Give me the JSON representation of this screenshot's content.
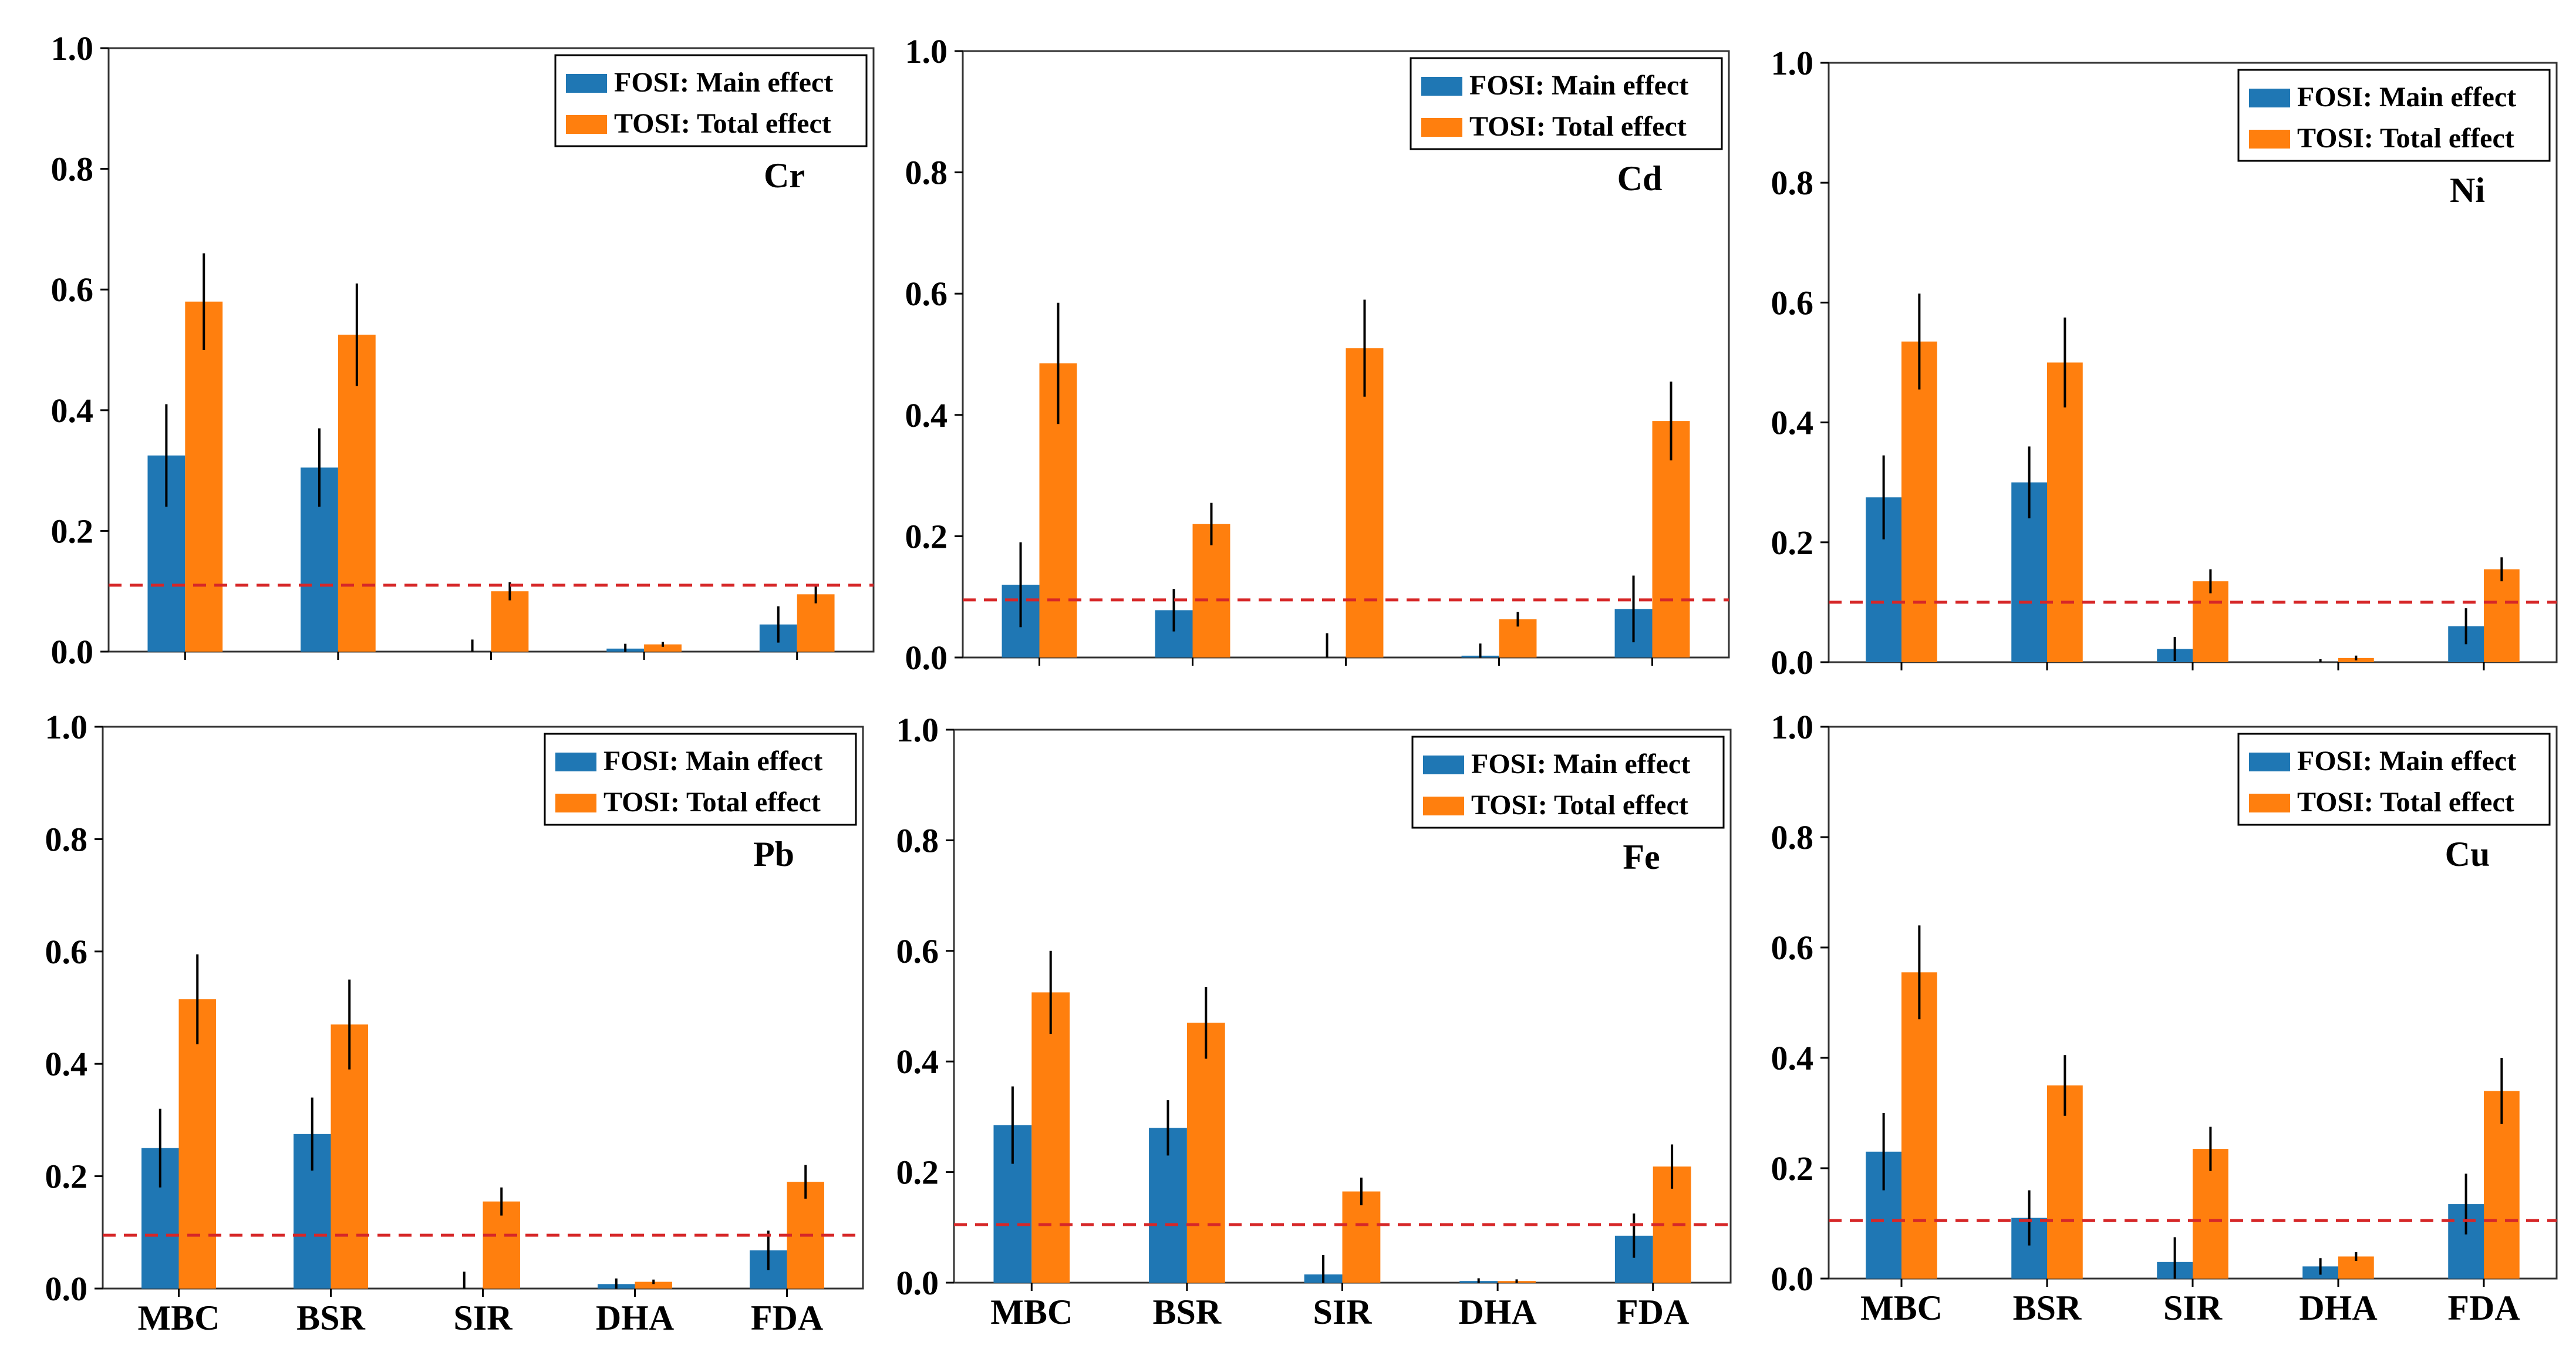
{
  "figure": {
    "colors": {
      "fosi": "#1f77b4",
      "tosi": "#ff7f0e",
      "threshold": "#d62728",
      "errorbar": "#000000"
    }
  },
  "chart_data": [
    {
      "type": "bar",
      "title": "Cr",
      "categories": [
        "MBC",
        "BSR",
        "SIR",
        "DHA",
        "FDA"
      ],
      "show_categories": false,
      "yticks": [
        "0.0",
        "0.2",
        "0.4",
        "0.6",
        "0.8",
        "1.0"
      ],
      "ylim": [
        0,
        1
      ],
      "threshold": 0.11,
      "legend": [
        "FOSI: Main effect",
        "TOSI: Total effect"
      ],
      "series": [
        {
          "name": "FOSI: Main effect",
          "values": [
            0.325,
            0.305,
            0.0,
            0.005,
            0.045
          ],
          "errors": [
            0.085,
            0.065,
            0.02,
            0.008,
            0.03
          ]
        },
        {
          "name": "TOSI: Total effect",
          "values": [
            0.58,
            0.525,
            0.1,
            0.012,
            0.095
          ],
          "errors": [
            0.08,
            0.085,
            0.015,
            0.004,
            0.015
          ]
        }
      ]
    },
    {
      "type": "bar",
      "title": "Cd",
      "categories": [
        "MBC",
        "BSR",
        "SIR",
        "DHA",
        "FDA"
      ],
      "show_categories": false,
      "yticks": [
        "0.0",
        "0.2",
        "0.4",
        "0.6",
        "0.8",
        "1.0"
      ],
      "ylim": [
        0,
        1
      ],
      "threshold": 0.095,
      "legend": [
        "FOSI: Main effect",
        "TOSI: Total effect"
      ],
      "series": [
        {
          "name": "FOSI: Main effect",
          "values": [
            0.12,
            0.078,
            0.0,
            0.003,
            0.08
          ],
          "errors": [
            0.07,
            0.035,
            0.04,
            0.02,
            0.055
          ]
        },
        {
          "name": "TOSI: Total effect",
          "values": [
            0.485,
            0.22,
            0.51,
            0.063,
            0.39
          ],
          "errors": [
            0.1,
            0.035,
            0.08,
            0.012,
            0.065
          ]
        }
      ]
    },
    {
      "type": "bar",
      "title": "Ni",
      "categories": [
        "MBC",
        "BSR",
        "SIR",
        "DHA",
        "FDA"
      ],
      "show_categories": false,
      "yticks": [
        "0.0",
        "0.2",
        "0.4",
        "0.6",
        "0.8",
        "1.0"
      ],
      "ylim": [
        0,
        1
      ],
      "threshold": 0.1,
      "legend": [
        "FOSI: Main effect",
        "TOSI: Total effect"
      ],
      "series": [
        {
          "name": "FOSI: Main effect",
          "values": [
            0.275,
            0.3,
            0.022,
            0.0,
            0.06
          ],
          "errors": [
            0.07,
            0.06,
            0.02,
            0.005,
            0.03
          ]
        },
        {
          "name": "TOSI: Total effect",
          "values": [
            0.535,
            0.5,
            0.135,
            0.007,
            0.155
          ],
          "errors": [
            0.08,
            0.075,
            0.02,
            0.004,
            0.02
          ]
        }
      ]
    },
    {
      "type": "bar",
      "title": "Pb",
      "categories": [
        "MBC",
        "BSR",
        "SIR",
        "DHA",
        "FDA"
      ],
      "show_categories": true,
      "yticks": [
        "0.0",
        "0.2",
        "0.4",
        "0.6",
        "0.8",
        "1.0"
      ],
      "ylim": [
        0,
        1
      ],
      "threshold": 0.095,
      "legend": [
        "FOSI: Main effect",
        "TOSI: Total effect"
      ],
      "series": [
        {
          "name": "FOSI: Main effect",
          "values": [
            0.25,
            0.275,
            0.0,
            0.008,
            0.068
          ],
          "errors": [
            0.07,
            0.065,
            0.03,
            0.01,
            0.035
          ]
        },
        {
          "name": "TOSI: Total effect",
          "values": [
            0.515,
            0.47,
            0.155,
            0.012,
            0.19
          ],
          "errors": [
            0.08,
            0.08,
            0.025,
            0.004,
            0.03
          ]
        }
      ]
    },
    {
      "type": "bar",
      "title": "Fe",
      "categories": [
        "MBC",
        "BSR",
        "SIR",
        "DHA",
        "FDA"
      ],
      "show_categories": true,
      "yticks": [
        "0.0",
        "0.2",
        "0.4",
        "0.6",
        "0.8",
        "1.0"
      ],
      "ylim": [
        0,
        1
      ],
      "threshold": 0.105,
      "legend": [
        "FOSI: Main effect",
        "TOSI: Total effect"
      ],
      "series": [
        {
          "name": "FOSI: Main effect",
          "values": [
            0.285,
            0.28,
            0.015,
            0.003,
            0.085
          ],
          "errors": [
            0.07,
            0.05,
            0.035,
            0.005,
            0.04
          ]
        },
        {
          "name": "TOSI: Total effect",
          "values": [
            0.525,
            0.47,
            0.165,
            0.003,
            0.21
          ],
          "errors": [
            0.075,
            0.065,
            0.025,
            0.003,
            0.04
          ]
        }
      ]
    },
    {
      "type": "bar",
      "title": "Cu",
      "categories": [
        "MBC",
        "BSR",
        "SIR",
        "DHA",
        "FDA"
      ],
      "show_categories": true,
      "yticks": [
        "0.0",
        "0.2",
        "0.4",
        "0.6",
        "0.8",
        "1.0"
      ],
      "ylim": [
        0,
        1
      ],
      "threshold": 0.105,
      "legend": [
        "FOSI: Main effect",
        "TOSI: Total effect"
      ],
      "series": [
        {
          "name": "FOSI: Main effect",
          "values": [
            0.23,
            0.11,
            0.03,
            0.022,
            0.135
          ],
          "errors": [
            0.07,
            0.05,
            0.045,
            0.015,
            0.055
          ]
        },
        {
          "name": "TOSI: Total effect",
          "values": [
            0.555,
            0.35,
            0.235,
            0.04,
            0.34
          ],
          "errors": [
            0.085,
            0.055,
            0.04,
            0.008,
            0.06
          ]
        }
      ]
    }
  ]
}
